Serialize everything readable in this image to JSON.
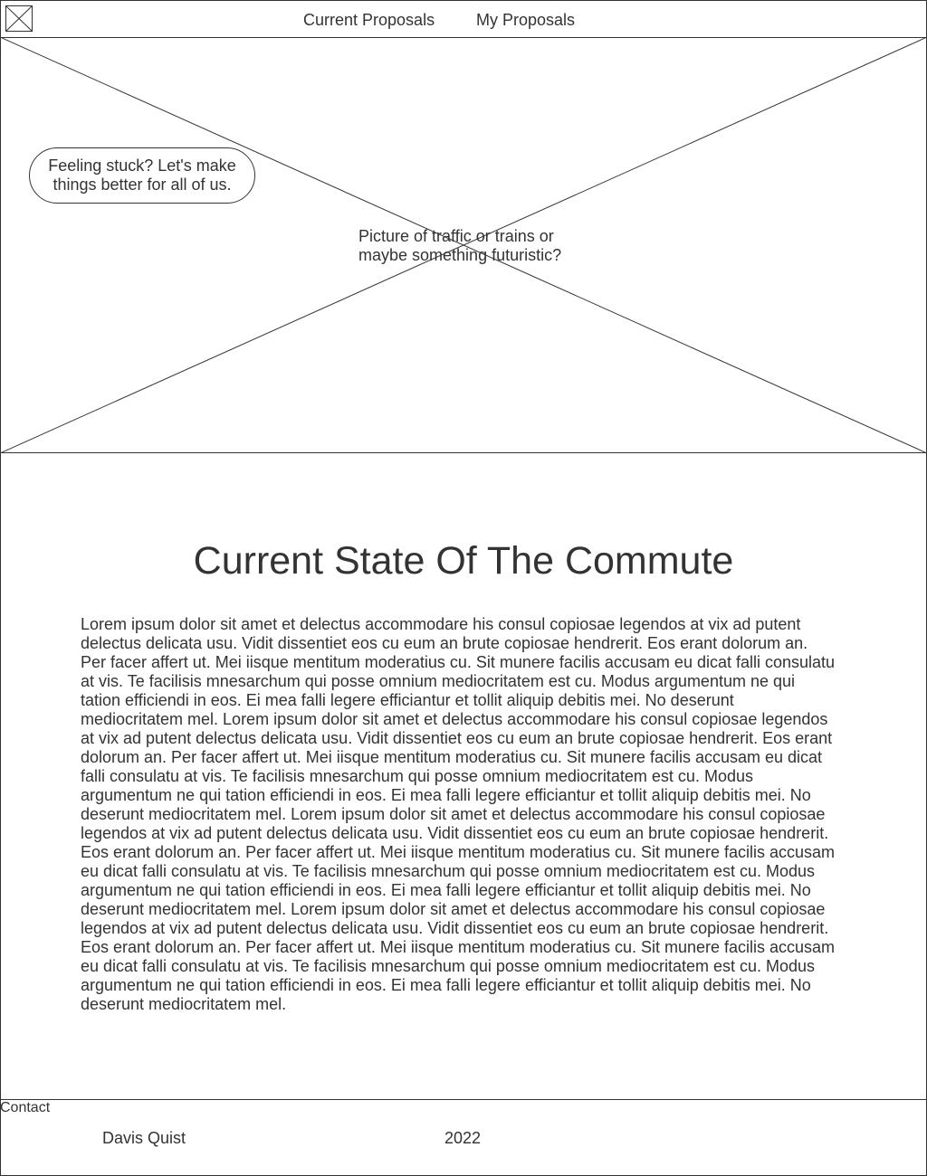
{
  "header": {
    "logo_icon": "logo-placeholder-icon",
    "nav": {
      "current_proposals": "Current Proposals",
      "my_proposals": "My Proposals"
    }
  },
  "hero": {
    "image_icon": "image-placeholder-icon",
    "caption": "Picture of traffic or trains or maybe something futuristic?",
    "bubble_text": "Feeling stuck? Let's make things better for all of us."
  },
  "main": {
    "title": "Current State Of The Commute",
    "body": "Lorem ipsum dolor sit amet et delectus accommodare his consul copiosae legendos at vix ad putent delectus delicata usu. Vidit dissentiet eos cu eum an brute copiosae hendrerit. Eos erant dolorum an. Per facer affert ut. Mei iisque mentitum moderatius cu. Sit munere facilis accusam eu dicat falli consulatu at vis. Te facilisis mnesarchum qui posse omnium mediocritatem est cu. Modus argumentum ne qui tation efficiendi in eos. Ei mea falli legere efficiantur et tollit aliquip debitis mei. No deserunt mediocritatem mel. Lorem ipsum dolor sit amet et delectus accommodare his consul copiosae legendos at vix ad putent delectus delicata usu. Vidit dissentiet eos cu eum an brute copiosae hendrerit. Eos erant dolorum an. Per facer affert ut. Mei iisque mentitum moderatius cu. Sit munere facilis accusam eu dicat falli consulatu at vis. Te facilisis mnesarchum qui posse omnium mediocritatem est cu. Modus argumentum ne qui tation efficiendi in eos. Ei mea falli legere efficiantur et tollit aliquip debitis mei. No deserunt mediocritatem mel. Lorem ipsum dolor sit amet et delectus accommodare his consul copiosae legendos at vix ad putent delectus delicata usu. Vidit dissentiet eos cu eum an brute copiosae hendrerit. Eos erant dolorum an. Per facer affert ut. Mei iisque mentitum moderatius cu. Sit munere facilis accusam eu dicat falli consulatu at vis. Te facilisis mnesarchum qui posse omnium mediocritatem est cu. Modus argumentum ne qui tation efficiendi in eos. Ei mea falli legere efficiantur et tollit aliquip debitis mei. No deserunt mediocritatem mel. Lorem ipsum dolor sit amet et delectus accommodare his consul copiosae legendos at vix ad putent delectus delicata usu. Vidit dissentiet eos cu eum an brute copiosae hendrerit. Eos erant dolorum an. Per facer affert ut. Mei iisque mentitum moderatius cu. Sit munere facilis accusam eu dicat falli consulatu at vis. Te facilisis mnesarchum qui posse omnium mediocritatem est cu. Modus argumentum ne qui tation efficiendi in eos. Ei mea falli legere efficiantur et tollit aliquip debitis mei. No deserunt mediocritatem mel."
  },
  "footer": {
    "name": "Davis Quist",
    "year": "2022",
    "contact": "Contact"
  },
  "colors": {
    "line": "#333333",
    "text": "#333333",
    "background": "#ffffff"
  }
}
